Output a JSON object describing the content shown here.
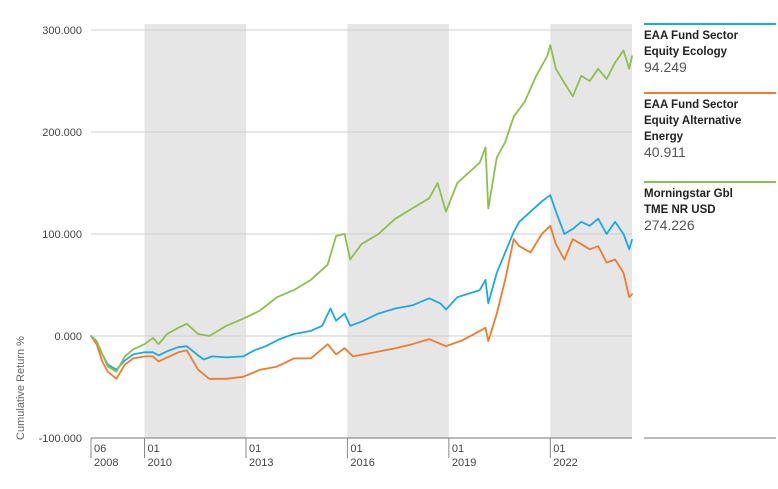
{
  "chart_data": {
    "type": "line",
    "title": "",
    "ylabel": "Cumulative Return %",
    "xlabel": "",
    "ylim": [
      -100,
      300
    ],
    "yticks": [
      "300.000",
      "200.000",
      "100.000",
      "0.000",
      "-100.000"
    ],
    "ytick_values": [
      300,
      200,
      100,
      0,
      -100
    ],
    "xlim": [
      "2008-06",
      "2024-06"
    ],
    "xticks": [
      {
        "date": "2008-06",
        "month": "06",
        "year": "2008"
      },
      {
        "date": "2010-01",
        "month": "01",
        "year": "2010"
      },
      {
        "date": "2013-01",
        "month": "01",
        "year": "2013"
      },
      {
        "date": "2016-01",
        "month": "01",
        "year": "2016"
      },
      {
        "date": "2019-01",
        "month": "01",
        "year": "2019"
      },
      {
        "date": "2022-01",
        "month": "01",
        "year": "2022"
      }
    ],
    "shaded_periods": [
      [
        "2010-01",
        "2013-01"
      ],
      [
        "2016-01",
        "2019-01"
      ],
      [
        "2022-01",
        "2024-06"
      ]
    ],
    "grid": "horizontal",
    "legend_position": "right",
    "series": [
      {
        "name": "EAA Fund Sector Equity Ecology",
        "name_lines": [
          "EAA Fund Sector",
          "Equity Ecology"
        ],
        "last_value": "94.249",
        "color": "#1ba9e1",
        "points": [
          [
            "2008-06",
            0
          ],
          [
            "2008-08",
            -5
          ],
          [
            "2008-10",
            -18
          ],
          [
            "2008-12",
            -28
          ],
          [
            "2009-03",
            -33
          ],
          [
            "2009-06",
            -24
          ],
          [
            "2009-09",
            -18
          ],
          [
            "2010-01",
            -16
          ],
          [
            "2010-04",
            -16
          ],
          [
            "2010-06",
            -19
          ],
          [
            "2010-09",
            -15
          ],
          [
            "2011-01",
            -11
          ],
          [
            "2011-04",
            -10
          ],
          [
            "2011-08",
            -19
          ],
          [
            "2011-10",
            -23
          ],
          [
            "2012-01",
            -20
          ],
          [
            "2012-06",
            -21
          ],
          [
            "2012-12",
            -20
          ],
          [
            "2013-04",
            -14
          ],
          [
            "2013-08",
            -10
          ],
          [
            "2014-01",
            -3
          ],
          [
            "2014-06",
            2
          ],
          [
            "2014-12",
            5
          ],
          [
            "2015-04",
            10
          ],
          [
            "2015-07",
            27
          ],
          [
            "2015-09",
            15
          ],
          [
            "2015-12",
            22
          ],
          [
            "2016-02",
            10
          ],
          [
            "2016-06",
            14
          ],
          [
            "2016-12",
            22
          ],
          [
            "2017-06",
            27
          ],
          [
            "2017-12",
            30
          ],
          [
            "2018-06",
            37
          ],
          [
            "2018-10",
            32
          ],
          [
            "2018-12",
            26
          ],
          [
            "2019-04",
            38
          ],
          [
            "2019-12",
            45
          ],
          [
            "2020-02",
            55
          ],
          [
            "2020-03",
            32
          ],
          [
            "2020-06",
            62
          ],
          [
            "2020-09",
            82
          ],
          [
            "2020-12",
            102
          ],
          [
            "2021-02",
            112
          ],
          [
            "2021-06",
            122
          ],
          [
            "2021-10",
            132
          ],
          [
            "2022-01",
            138
          ],
          [
            "2022-03",
            122
          ],
          [
            "2022-06",
            100
          ],
          [
            "2022-09",
            105
          ],
          [
            "2022-12",
            112
          ],
          [
            "2023-03",
            108
          ],
          [
            "2023-06",
            115
          ],
          [
            "2023-09",
            100
          ],
          [
            "2023-12",
            112
          ],
          [
            "2024-03",
            100
          ],
          [
            "2024-05",
            85
          ],
          [
            "2024-06",
            94.249
          ]
        ]
      },
      {
        "name": "EAA Fund Sector Equity Alternative Energy",
        "name_lines": [
          "EAA Fund Sector",
          "Equity Alternative",
          "Energy"
        ],
        "last_value": "40.911",
        "color": "#f07b2c",
        "points": [
          [
            "2008-06",
            0
          ],
          [
            "2008-08",
            -8
          ],
          [
            "2008-10",
            -25
          ],
          [
            "2008-12",
            -35
          ],
          [
            "2009-03",
            -42
          ],
          [
            "2009-06",
            -28
          ],
          [
            "2009-09",
            -22
          ],
          [
            "2010-01",
            -20
          ],
          [
            "2010-04",
            -20
          ],
          [
            "2010-06",
            -25
          ],
          [
            "2010-09",
            -21
          ],
          [
            "2011-01",
            -16
          ],
          [
            "2011-04",
            -14
          ],
          [
            "2011-08",
            -33
          ],
          [
            "2011-12",
            -42
          ],
          [
            "2012-06",
            -42
          ],
          [
            "2012-12",
            -40
          ],
          [
            "2013-06",
            -33
          ],
          [
            "2013-12",
            -30
          ],
          [
            "2014-06",
            -22
          ],
          [
            "2014-12",
            -22
          ],
          [
            "2015-06",
            -8
          ],
          [
            "2015-09",
            -18
          ],
          [
            "2015-12",
            -12
          ],
          [
            "2016-03",
            -20
          ],
          [
            "2016-09",
            -17
          ],
          [
            "2017-06",
            -12
          ],
          [
            "2017-12",
            -8
          ],
          [
            "2018-06",
            -3
          ],
          [
            "2018-12",
            -10
          ],
          [
            "2019-06",
            -4
          ],
          [
            "2019-12",
            5
          ],
          [
            "2020-02",
            8
          ],
          [
            "2020-03",
            -5
          ],
          [
            "2020-06",
            22
          ],
          [
            "2020-09",
            55
          ],
          [
            "2020-12",
            95
          ],
          [
            "2021-02",
            88
          ],
          [
            "2021-06",
            82
          ],
          [
            "2021-10",
            100
          ],
          [
            "2022-01",
            108
          ],
          [
            "2022-03",
            90
          ],
          [
            "2022-06",
            75
          ],
          [
            "2022-09",
            95
          ],
          [
            "2022-12",
            90
          ],
          [
            "2023-03",
            85
          ],
          [
            "2023-06",
            88
          ],
          [
            "2023-09",
            72
          ],
          [
            "2023-12",
            75
          ],
          [
            "2024-03",
            62
          ],
          [
            "2024-05",
            38
          ],
          [
            "2024-06",
            40.911
          ]
        ]
      },
      {
        "name": "Morningstar Gbl TME NR USD",
        "name_lines": [
          "Morningstar Gbl",
          "TME NR USD"
        ],
        "last_value": "274.226",
        "color": "#8cc04e",
        "points": [
          [
            "2008-06",
            0
          ],
          [
            "2008-08",
            -5
          ],
          [
            "2008-10",
            -18
          ],
          [
            "2008-12",
            -30
          ],
          [
            "2009-03",
            -35
          ],
          [
            "2009-06",
            -20
          ],
          [
            "2009-09",
            -13
          ],
          [
            "2010-01",
            -8
          ],
          [
            "2010-04",
            -2
          ],
          [
            "2010-06",
            -8
          ],
          [
            "2010-09",
            2
          ],
          [
            "2011-01",
            8
          ],
          [
            "2011-04",
            12
          ],
          [
            "2011-08",
            2
          ],
          [
            "2011-12",
            0
          ],
          [
            "2012-06",
            10
          ],
          [
            "2012-12",
            17
          ],
          [
            "2013-06",
            25
          ],
          [
            "2013-12",
            38
          ],
          [
            "2014-06",
            45
          ],
          [
            "2014-12",
            55
          ],
          [
            "2015-06",
            70
          ],
          [
            "2015-09",
            98
          ],
          [
            "2015-12",
            100
          ],
          [
            "2016-02",
            75
          ],
          [
            "2016-06",
            90
          ],
          [
            "2016-12",
            100
          ],
          [
            "2017-06",
            115
          ],
          [
            "2017-12",
            125
          ],
          [
            "2018-06",
            135
          ],
          [
            "2018-09",
            150
          ],
          [
            "2018-12",
            122
          ],
          [
            "2019-04",
            150
          ],
          [
            "2019-12",
            170
          ],
          [
            "2020-02",
            185
          ],
          [
            "2020-03",
            125
          ],
          [
            "2020-06",
            175
          ],
          [
            "2020-09",
            190
          ],
          [
            "2020-12",
            215
          ],
          [
            "2021-04",
            230
          ],
          [
            "2021-08",
            255
          ],
          [
            "2021-12",
            275
          ],
          [
            "2022-01",
            285
          ],
          [
            "2022-03",
            262
          ],
          [
            "2022-06",
            248
          ],
          [
            "2022-09",
            235
          ],
          [
            "2022-12",
            255
          ],
          [
            "2023-03",
            250
          ],
          [
            "2023-06",
            262
          ],
          [
            "2023-09",
            252
          ],
          [
            "2023-12",
            268
          ],
          [
            "2024-03",
            280
          ],
          [
            "2024-05",
            262
          ],
          [
            "2024-06",
            274.226
          ]
        ]
      }
    ]
  }
}
